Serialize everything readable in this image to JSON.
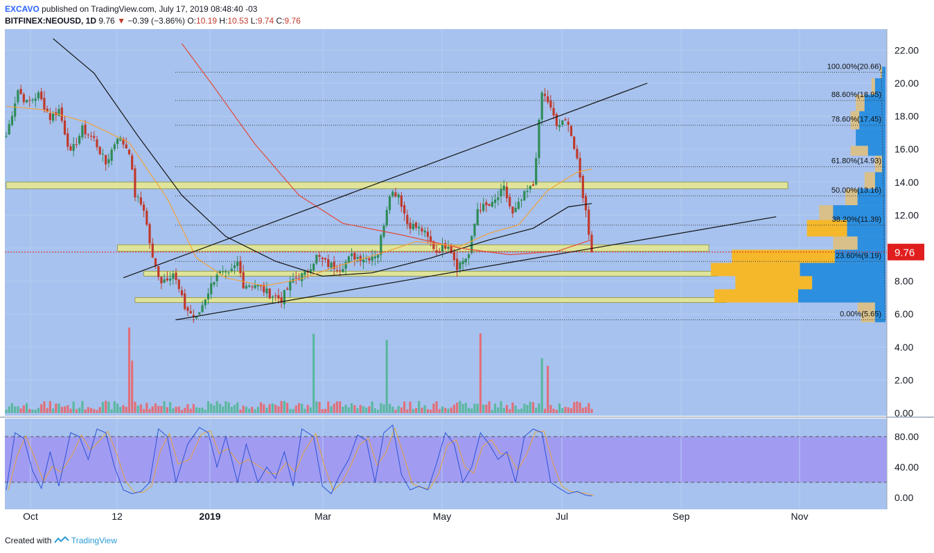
{
  "header": {
    "author": "EXCAVO",
    "published_text": " published on TradingView.com, July 17, 2019 08:48:40 -03",
    "symbol": "BITFINEX:NEOUSD, 1D",
    "last": "9.76",
    "arrow": "▼",
    "change": "−0.39 (−3.86%)",
    "o_label": "O:",
    "o_value": "10.19",
    "h_label": "H:",
    "h_value": "10.53",
    "l_label": "L:",
    "l_value": "9.74",
    "c_label": "C:",
    "c_value": "9.76"
  },
  "footer": {
    "created_with": "Created with",
    "brand": "TradingView"
  },
  "colors": {
    "pane_bg": "#a7c2ee",
    "osc_band": "#a19cf1",
    "up": "#2e8b57",
    "down": "#c0392b",
    "zone_fill": "#dfe49a",
    "vp_orange": "#f5b82b",
    "vp_blue": "#2c8fe0",
    "vp_tan": "#d9c08a",
    "ma_black": "#111111",
    "ma_red": "#e34a3a",
    "ma_orange": "#f2a23a",
    "stoch_k": "#2d50d8",
    "stoch_d": "#e8a33a",
    "price_tag": "#e01e1e"
  },
  "chart_data": {
    "type": "candlestick",
    "price_axis": {
      "min": 0,
      "max": 22,
      "ticks": [
        "0.00",
        "2.00",
        "4.00",
        "6.00",
        "8.00",
        "10.00",
        "12.00",
        "14.00",
        "16.00",
        "18.00",
        "20.00",
        "22.00"
      ]
    },
    "time_axis": {
      "labels": [
        "Oct",
        "12",
        "2019",
        "Mar",
        "May",
        "Jul",
        "Sep",
        "Nov"
      ],
      "bold": [
        "2019"
      ]
    },
    "current_price": {
      "label": "9.76",
      "value": 9.76
    },
    "price_path": [
      [
        0,
        16.8
      ],
      [
        4,
        19.6
      ],
      [
        7,
        18.8
      ],
      [
        11,
        19.3
      ],
      [
        15,
        17.9
      ],
      [
        18,
        18.4
      ],
      [
        22,
        15.7
      ],
      [
        26,
        17.2
      ],
      [
        30,
        16.6
      ],
      [
        34,
        15.1
      ],
      [
        38,
        16.8
      ],
      [
        42,
        15.9
      ],
      [
        44,
        13.2
      ],
      [
        47,
        12.4
      ],
      [
        50,
        9.3
      ],
      [
        53,
        8.0
      ],
      [
        57,
        8.5
      ],
      [
        61,
        6.4
      ],
      [
        65,
        5.7
      ],
      [
        68,
        7.0
      ],
      [
        72,
        8.5
      ],
      [
        76,
        8.3
      ],
      [
        79,
        9.1
      ],
      [
        81,
        7.8
      ],
      [
        85,
        7.8
      ],
      [
        90,
        7.2
      ],
      [
        94,
        6.9
      ],
      [
        98,
        8.1
      ],
      [
        102,
        8.4
      ],
      [
        106,
        9.5
      ],
      [
        110,
        9.0
      ],
      [
        114,
        8.8
      ],
      [
        118,
        9.5
      ],
      [
        123,
        9.4
      ],
      [
        127,
        9.7
      ],
      [
        131,
        13.4
      ],
      [
        134,
        13.3
      ],
      [
        137,
        11.5
      ],
      [
        142,
        11.1
      ],
      [
        147,
        9.8
      ],
      [
        151,
        10.3
      ],
      [
        154,
        8.9
      ],
      [
        158,
        9.6
      ],
      [
        161,
        12.4
      ],
      [
        166,
        12.6
      ],
      [
        170,
        13.6
      ],
      [
        173,
        12.0
      ],
      [
        177,
        13.2
      ],
      [
        180,
        13.8
      ],
      [
        183,
        19.4
      ],
      [
        185,
        18.9
      ],
      [
        188,
        17.4
      ],
      [
        192,
        17.7
      ],
      [
        195,
        15.2
      ],
      [
        198,
        12.2
      ],
      [
        200,
        9.76
      ]
    ],
    "volume_axis": {
      "ticks": [
        "0.00",
        "2.00"
      ]
    },
    "moving_averages": [
      {
        "color_key": "ma_black",
        "points": [
          [
            16,
            22.7
          ],
          [
            30,
            20.6
          ],
          [
            45,
            16.8
          ],
          [
            60,
            13.2
          ],
          [
            75,
            10.7
          ],
          [
            92,
            9.2
          ],
          [
            108,
            8.3
          ],
          [
            125,
            8.5
          ],
          [
            145,
            9.4
          ],
          [
            165,
            10.5
          ],
          [
            180,
            11.2
          ],
          [
            192,
            12.5
          ],
          [
            200,
            12.7
          ]
        ]
      },
      {
        "color_key": "ma_red",
        "points": [
          [
            60,
            22.4
          ],
          [
            70,
            20.0
          ],
          [
            85,
            16.3
          ],
          [
            100,
            13.2
          ],
          [
            115,
            11.5
          ],
          [
            135,
            10.8
          ],
          [
            155,
            10.0
          ],
          [
            172,
            9.6
          ],
          [
            188,
            9.8
          ],
          [
            200,
            10.5
          ]
        ]
      },
      {
        "color_key": "ma_orange",
        "points": [
          [
            0,
            18.6
          ],
          [
            12,
            18.4
          ],
          [
            28,
            17.6
          ],
          [
            42,
            16.4
          ],
          [
            55,
            13.0
          ],
          [
            65,
            9.4
          ],
          [
            75,
            8.2
          ],
          [
            88,
            7.7
          ],
          [
            100,
            8.1
          ],
          [
            115,
            9.0
          ],
          [
            130,
            9.8
          ],
          [
            140,
            10.4
          ],
          [
            155,
            10.1
          ],
          [
            165,
            10.9
          ],
          [
            175,
            11.4
          ],
          [
            185,
            13.5
          ],
          [
            195,
            14.6
          ],
          [
            200,
            14.8
          ]
        ]
      }
    ],
    "trendlines": [
      {
        "from": [
          40,
          8.2
        ],
        "to": [
          219,
          20.0
        ]
      },
      {
        "from": [
          58,
          5.65
        ],
        "to": [
          263,
          11.9
        ]
      }
    ],
    "support_zones": [
      {
        "from": 0,
        "to": 267,
        "low": 13.6,
        "high": 14.0
      },
      {
        "from": 38,
        "to": 240,
        "low": 9.8,
        "high": 10.2
      },
      {
        "from": 47,
        "to": 243,
        "low": 8.3,
        "high": 8.6
      },
      {
        "from": 44,
        "to": 246,
        "low": 6.7,
        "high": 7.0
      }
    ],
    "fibonacci": [
      {
        "label": "100.00%(20.66)",
        "value": 20.66
      },
      {
        "label": "88.60%(18.95)",
        "value": 18.95
      },
      {
        "label": "78.60%(17.45)",
        "value": 17.45
      },
      {
        "label": "61.80%(14.93)",
        "value": 14.93
      },
      {
        "label": "50.00%(13.16)",
        "value": 13.16
      },
      {
        "label": "38.20%(11.39)",
        "value": 11.39
      },
      {
        "label": "23.60%(9.19)",
        "value": 9.19
      },
      {
        "label": "0.00%(5.65)",
        "value": 5.65
      }
    ],
    "volume_profile": [
      {
        "low": 20.3,
        "high": 21.0,
        "bars": [
          0.02,
          0.03
        ]
      },
      {
        "low": 19.3,
        "high": 20.3,
        "bars": [
          0.06,
          0.08
        ]
      },
      {
        "low": 18.3,
        "high": 19.3,
        "bars": [
          0.12,
          0.17
        ]
      },
      {
        "low": 17.2,
        "high": 18.3,
        "bars": [
          0.15,
          0.2
        ]
      },
      {
        "low": 16.2,
        "high": 17.2,
        "bars": [
          0.17,
          0.12
        ]
      },
      {
        "low": 15.6,
        "high": 16.2,
        "bars": [
          0.1,
          0.2
        ]
      },
      {
        "low": 14.6,
        "high": 15.6,
        "bars": [
          0.02,
          0.06
        ]
      },
      {
        "low": 13.6,
        "high": 14.6,
        "bars": [
          0.06,
          0.12
        ]
      },
      {
        "low": 12.6,
        "high": 13.6,
        "bars": [
          0.16,
          0.23
        ]
      },
      {
        "low": 11.7,
        "high": 12.6,
        "bars": [
          0.3,
          0.38
        ]
      },
      {
        "low": 10.7,
        "high": 11.7,
        "bars": [
          0.22,
          0.45
        ]
      },
      {
        "low": 9.9,
        "high": 10.7,
        "bars": [
          0.16,
          0.3
        ]
      },
      {
        "low": 9.1,
        "high": 9.9,
        "bars": [
          0.29,
          0.88
        ]
      },
      {
        "low": 8.3,
        "high": 9.1,
        "bars": [
          0.49,
          1.0
        ]
      },
      {
        "low": 7.5,
        "high": 8.3,
        "bars": [
          0.42,
          0.86
        ]
      },
      {
        "low": 6.7,
        "high": 7.5,
        "bars": [
          0.5,
          0.98
        ]
      },
      {
        "low": 6.1,
        "high": 6.7,
        "bars": [
          0.06,
          0.16
        ]
      },
      {
        "low": 5.5,
        "high": 6.1,
        "bars": [
          0.06,
          0.14
        ]
      }
    ],
    "stochastic": {
      "ticks": [
        "0.00",
        "40.00",
        "80.00"
      ],
      "band": [
        20,
        80
      ],
      "path": [
        [
          0,
          10
        ],
        [
          3,
          85
        ],
        [
          6,
          78
        ],
        [
          9,
          35
        ],
        [
          12,
          12
        ],
        [
          15,
          60
        ],
        [
          18,
          15
        ],
        [
          22,
          85
        ],
        [
          25,
          80
        ],
        [
          28,
          50
        ],
        [
          31,
          90
        ],
        [
          34,
          85
        ],
        [
          37,
          40
        ],
        [
          40,
          10
        ],
        [
          43,
          5
        ],
        [
          46,
          8
        ],
        [
          49,
          20
        ],
        [
          52,
          90
        ],
        [
          55,
          80
        ],
        [
          58,
          20
        ],
        [
          62,
          70
        ],
        [
          66,
          92
        ],
        [
          69,
          85
        ],
        [
          72,
          40
        ],
        [
          75,
          80
        ],
        [
          79,
          20
        ],
        [
          82,
          70
        ],
        [
          86,
          20
        ],
        [
          89,
          40
        ],
        [
          92,
          25
        ],
        [
          95,
          60
        ],
        [
          98,
          15
        ],
        [
          101,
          90
        ],
        [
          105,
          80
        ],
        [
          108,
          15
        ],
        [
          111,
          5
        ],
        [
          114,
          30
        ],
        [
          117,
          50
        ],
        [
          120,
          82
        ],
        [
          123,
          75
        ],
        [
          126,
          20
        ],
        [
          129,
          85
        ],
        [
          132,
          95
        ],
        [
          135,
          30
        ],
        [
          138,
          10
        ],
        [
          141,
          15
        ],
        [
          144,
          10
        ],
        [
          147,
          45
        ],
        [
          150,
          85
        ],
        [
          153,
          70
        ],
        [
          156,
          20
        ],
        [
          159,
          40
        ],
        [
          162,
          85
        ],
        [
          165,
          70
        ],
        [
          168,
          50
        ],
        [
          171,
          60
        ],
        [
          174,
          20
        ],
        [
          177,
          80
        ],
        [
          180,
          90
        ],
        [
          183,
          85
        ],
        [
          186,
          20
        ],
        [
          189,
          12
        ],
        [
          192,
          5
        ],
        [
          195,
          8
        ],
        [
          198,
          3
        ],
        [
          200,
          2
        ]
      ]
    }
  }
}
